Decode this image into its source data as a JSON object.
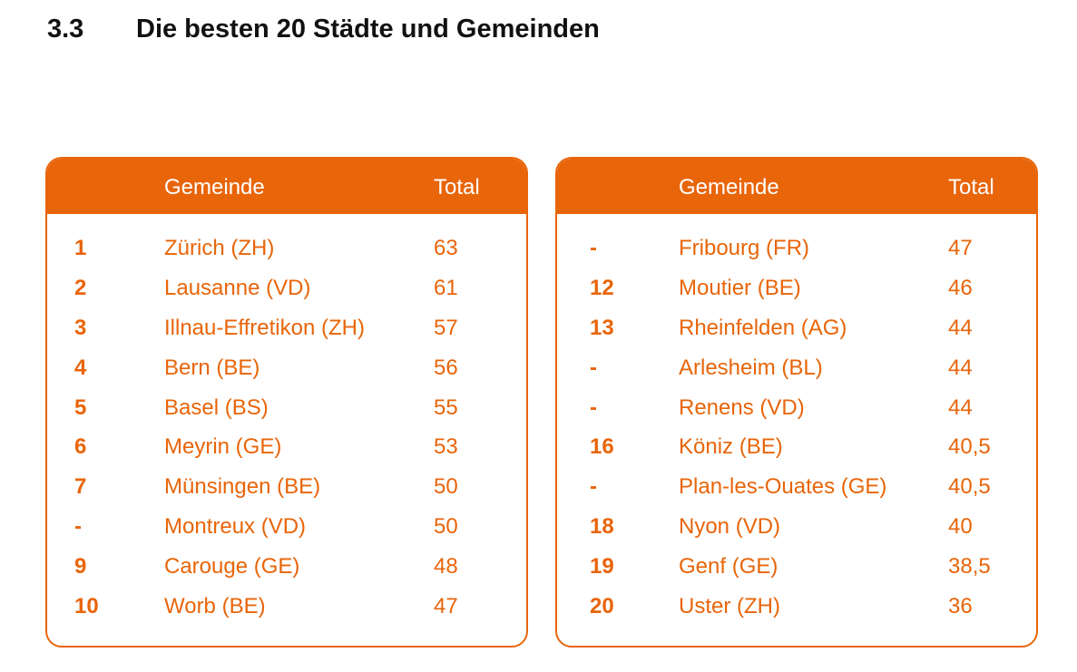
{
  "section": {
    "number": "3.3",
    "title": "Die besten 20 Städte und Gemeinden"
  },
  "tables": [
    {
      "columns": {
        "rank": "",
        "name": "Gemeinde",
        "total": "Total"
      },
      "rows": [
        {
          "rank": "1",
          "name": "Zürich (ZH)",
          "total": "63"
        },
        {
          "rank": "2",
          "name": "Lausanne (VD)",
          "total": "61"
        },
        {
          "rank": "3",
          "name": "Illnau-Effretikon (ZH)",
          "total": "57"
        },
        {
          "rank": "4",
          "name": "Bern (BE)",
          "total": "56"
        },
        {
          "rank": "5",
          "name": "Basel (BS)",
          "total": "55"
        },
        {
          "rank": "6",
          "name": "Meyrin (GE)",
          "total": "53"
        },
        {
          "rank": "7",
          "name": "Münsingen (BE)",
          "total": "50"
        },
        {
          "rank": "-",
          "name": "Montreux (VD)",
          "total": "50"
        },
        {
          "rank": "9",
          "name": "Carouge (GE)",
          "total": "48"
        },
        {
          "rank": "10",
          "name": "Worb (BE)",
          "total": "47"
        }
      ]
    },
    {
      "columns": {
        "rank": "",
        "name": "Gemeinde",
        "total": "Total"
      },
      "rows": [
        {
          "rank": "-",
          "name": "Fribourg (FR)",
          "total": "47"
        },
        {
          "rank": "12",
          "name": "Moutier (BE)",
          "total": "46"
        },
        {
          "rank": "13",
          "name": "Rheinfelden (AG)",
          "total": "44"
        },
        {
          "rank": "-",
          "name": "Arlesheim (BL)",
          "total": "44"
        },
        {
          "rank": "-",
          "name": "Renens (VD)",
          "total": "44"
        },
        {
          "rank": "16",
          "name": "Köniz (BE)",
          "total": "40,5"
        },
        {
          "rank": "-",
          "name": "Plan-les-Ouates (GE)",
          "total": "40,5"
        },
        {
          "rank": "18",
          "name": "Nyon (VD)",
          "total": "40"
        },
        {
          "rank": "19",
          "name": "Genf (GE)",
          "total": "38,5"
        },
        {
          "rank": "20",
          "name": "Uster (ZH)",
          "total": "36"
        }
      ]
    }
  ],
  "colors": {
    "accent": "#e8650a",
    "header_text": "#ffffff",
    "heading_text": "#111111"
  }
}
